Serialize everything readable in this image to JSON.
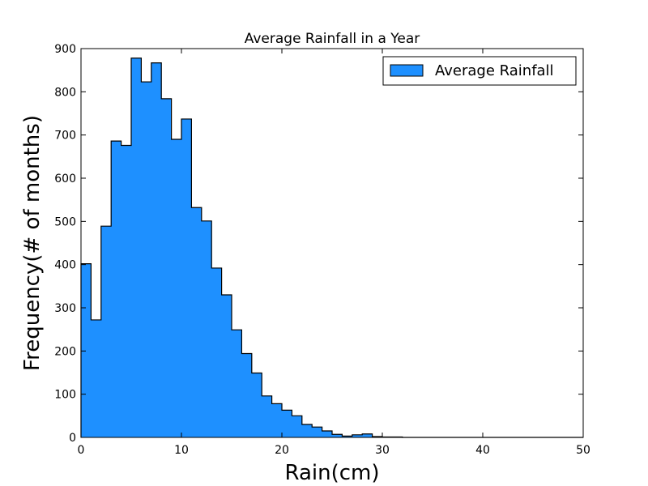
{
  "chart_data": {
    "type": "bar",
    "title": "Average Rainfall in a Year",
    "xlabel": "Rain(cm)",
    "ylabel": "Frequency(# of months)",
    "xlim": [
      0,
      50
    ],
    "ylim": [
      0,
      900
    ],
    "xticks": [
      0,
      10,
      20,
      30,
      40,
      50
    ],
    "yticks": [
      0,
      100,
      200,
      300,
      400,
      500,
      600,
      700,
      800,
      900
    ],
    "grid": false,
    "legend": {
      "position": "top-right"
    },
    "series": [
      {
        "name": "Average Rainfall",
        "color": "#1e90ff",
        "bin_edges": [
          0,
          1,
          2,
          3,
          4,
          5,
          6,
          7,
          8,
          9,
          10,
          11,
          12,
          13,
          14,
          15,
          16,
          17,
          18,
          19,
          20,
          21,
          22,
          23,
          24,
          25,
          26,
          27,
          28,
          29,
          30,
          31,
          32,
          33,
          34,
          35,
          36,
          37,
          38,
          39,
          40,
          41,
          42,
          43,
          44,
          45,
          46,
          47,
          48,
          49,
          50
        ],
        "values": [
          402,
          272,
          489,
          686,
          676,
          878,
          823,
          867,
          784,
          690,
          737,
          532,
          501,
          392,
          330,
          249,
          194,
          149,
          96,
          78,
          63,
          50,
          30,
          24,
          15,
          7,
          3,
          6,
          8,
          2,
          1,
          1,
          0,
          0,
          0,
          0,
          0,
          0,
          0,
          0,
          0,
          0,
          0,
          0,
          0,
          0,
          0,
          0,
          0,
          0
        ]
      }
    ]
  }
}
